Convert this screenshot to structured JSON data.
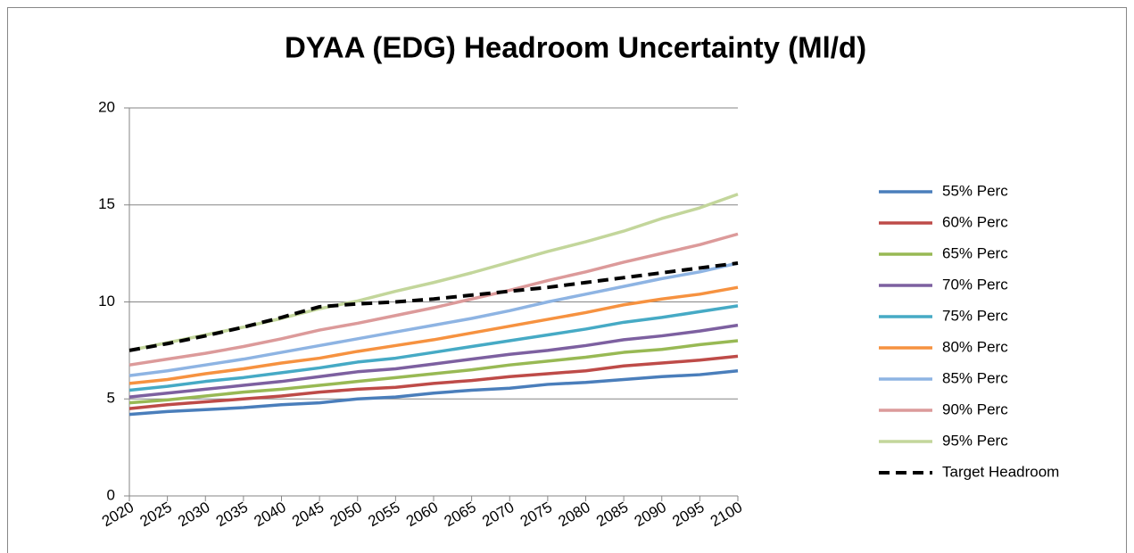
{
  "chart_data": {
    "type": "line",
    "title": "DYAA (EDG) Headroom Uncertainty (Ml/d)",
    "x": [
      2020,
      2025,
      2030,
      2035,
      2040,
      2045,
      2050,
      2055,
      2060,
      2065,
      2070,
      2075,
      2080,
      2085,
      2090,
      2095,
      2100
    ],
    "xlim": [
      2020,
      2100
    ],
    "xticks": [
      2020,
      2025,
      2030,
      2035,
      2040,
      2045,
      2050,
      2055,
      2060,
      2065,
      2070,
      2075,
      2080,
      2085,
      2090,
      2095,
      2100
    ],
    "ylim": [
      0,
      20
    ],
    "yticks": [
      0,
      5,
      10,
      15,
      20
    ],
    "grid": true,
    "legend": "right",
    "series": [
      {
        "name": "55% Perc",
        "color": "#4a7ebb",
        "values": [
          4.2,
          4.35,
          4.45,
          4.55,
          4.7,
          4.8,
          5.0,
          5.1,
          5.3,
          5.45,
          5.55,
          5.75,
          5.85,
          6.0,
          6.15,
          6.25,
          6.45
        ]
      },
      {
        "name": "60% Perc",
        "color": "#be4b48",
        "values": [
          4.5,
          4.7,
          4.85,
          5.0,
          5.15,
          5.35,
          5.5,
          5.6,
          5.8,
          5.95,
          6.15,
          6.3,
          6.45,
          6.7,
          6.85,
          7.0,
          7.2
        ]
      },
      {
        "name": "65% Perc",
        "color": "#98b954",
        "values": [
          4.8,
          4.95,
          5.15,
          5.35,
          5.5,
          5.7,
          5.9,
          6.1,
          6.3,
          6.5,
          6.75,
          6.95,
          7.15,
          7.4,
          7.55,
          7.8,
          8.0
        ]
      },
      {
        "name": "70% Perc",
        "color": "#7d60a0",
        "values": [
          5.1,
          5.3,
          5.5,
          5.7,
          5.9,
          6.15,
          6.4,
          6.55,
          6.8,
          7.05,
          7.3,
          7.5,
          7.75,
          8.05,
          8.25,
          8.5,
          8.8
        ]
      },
      {
        "name": "75% Perc",
        "color": "#46aac5",
        "values": [
          5.45,
          5.65,
          5.9,
          6.1,
          6.35,
          6.6,
          6.9,
          7.1,
          7.4,
          7.7,
          8.0,
          8.3,
          8.6,
          8.95,
          9.2,
          9.5,
          9.8
        ]
      },
      {
        "name": "80% Perc",
        "color": "#f69240",
        "values": [
          5.8,
          6.0,
          6.3,
          6.55,
          6.85,
          7.1,
          7.45,
          7.75,
          8.05,
          8.4,
          8.75,
          9.1,
          9.45,
          9.85,
          10.15,
          10.4,
          10.75
        ]
      },
      {
        "name": "85% Perc",
        "color": "#8eb4e3",
        "values": [
          6.2,
          6.45,
          6.75,
          7.05,
          7.4,
          7.75,
          8.1,
          8.45,
          8.8,
          9.15,
          9.55,
          10.0,
          10.4,
          10.8,
          11.2,
          11.55,
          12.0
        ]
      },
      {
        "name": "90% Perc",
        "color": "#dc9a9a",
        "values": [
          6.75,
          7.05,
          7.35,
          7.7,
          8.1,
          8.55,
          8.9,
          9.3,
          9.7,
          10.15,
          10.6,
          11.1,
          11.55,
          12.05,
          12.5,
          12.95,
          13.5
        ]
      },
      {
        "name": "95% Perc",
        "color": "#c3d69b",
        "values": [
          7.5,
          7.9,
          8.3,
          8.7,
          9.15,
          9.65,
          10.05,
          10.55,
          11.0,
          11.5,
          12.05,
          12.6,
          13.1,
          13.65,
          14.3,
          14.85,
          15.55
        ]
      },
      {
        "name": "Target Headroom",
        "color": "#000000",
        "dash": true,
        "values": [
          7.5,
          7.85,
          8.25,
          8.7,
          9.2,
          9.75,
          9.9,
          10.0,
          10.15,
          10.35,
          10.55,
          10.75,
          11.0,
          11.25,
          11.5,
          11.75,
          12.0
        ]
      }
    ]
  }
}
